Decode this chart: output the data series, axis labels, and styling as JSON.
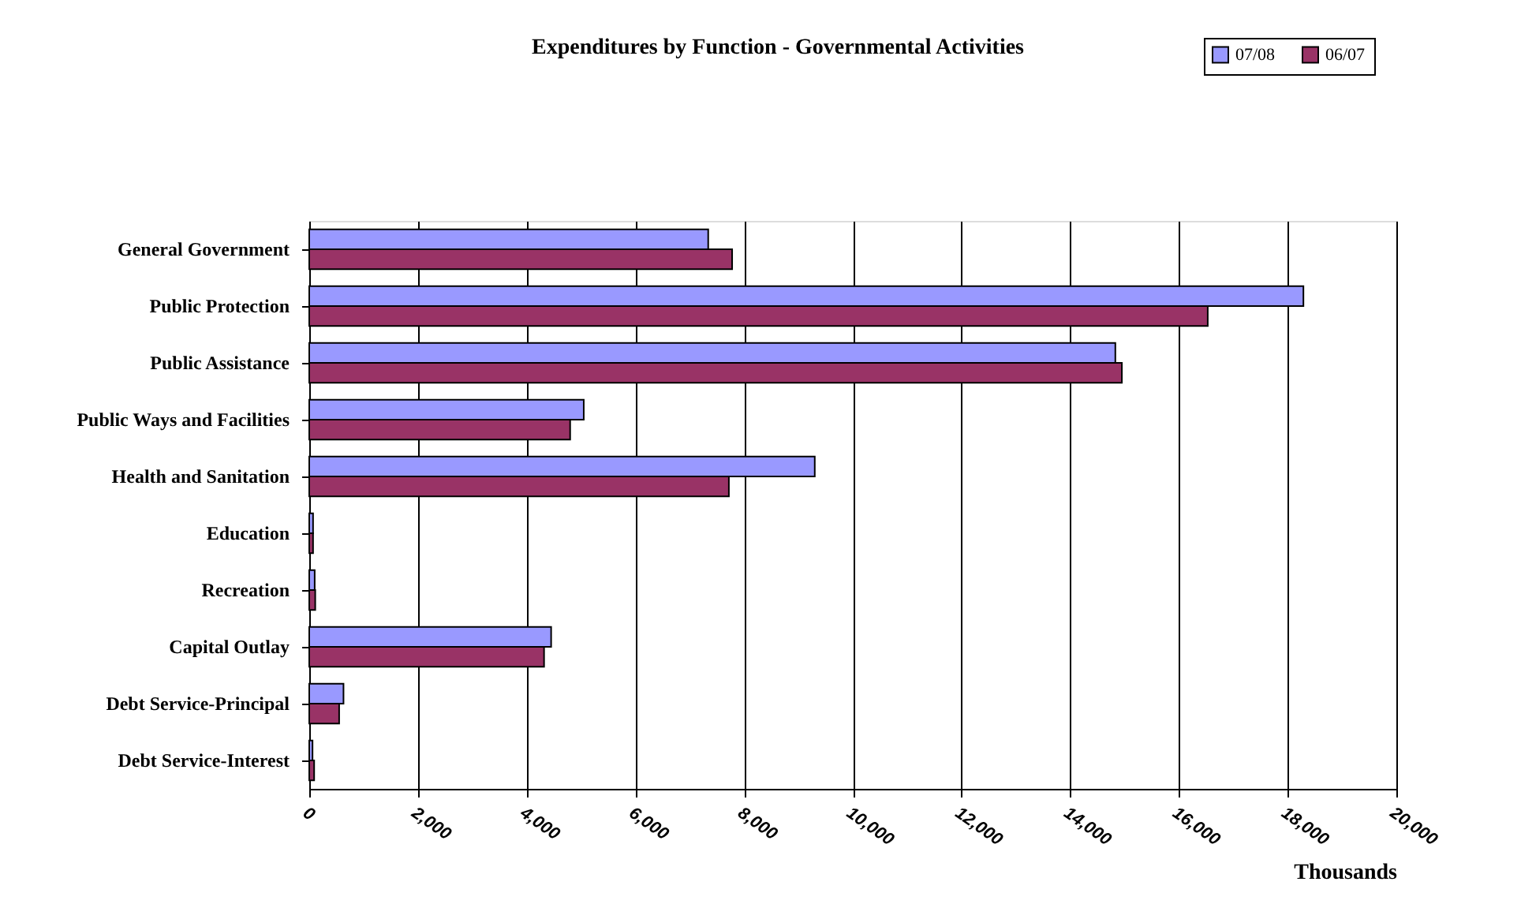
{
  "chart_data": {
    "type": "bar",
    "orientation": "horizontal",
    "title": "Expenditures by Function - Governmental Activities",
    "xlabel": "Thousands",
    "categories": [
      "General Government",
      "Public Protection",
      "Public Assistance",
      "Public Ways and Facilities",
      "Health and Sanitation",
      "Education",
      "Recreation",
      "Capital Outlay",
      "Debt Service-Principal",
      "Debt Service-Interest"
    ],
    "series": [
      {
        "name": "07/08",
        "color": "#9999ff",
        "values": [
          7340,
          18290,
          14830,
          5050,
          9300,
          70,
          100,
          4450,
          630,
          60
        ]
      },
      {
        "name": "06/07",
        "color": "#993366",
        "values": [
          7780,
          16530,
          14950,
          4800,
          7720,
          70,
          110,
          4320,
          550,
          90
        ]
      }
    ],
    "xlim": [
      0,
      20000
    ],
    "xticks": [
      0,
      {
        "value": 2000,
        "label": "2,000"
      },
      {
        "value": 4000,
        "label": "4,000"
      },
      {
        "value": 6000,
        "label": "6,000"
      },
      {
        "value": 8000,
        "label": "8,000"
      },
      {
        "value": 10000,
        "label": "10,000"
      },
      {
        "value": 12000,
        "label": "12,000"
      },
      {
        "value": 14000,
        "label": "14,000"
      },
      {
        "value": 16000,
        "label": "16,000"
      },
      {
        "value": 18000,
        "label": "18,000"
      },
      {
        "value": 20000,
        "label": "20,000"
      }
    ],
    "grid": "x",
    "legend": "top right"
  }
}
